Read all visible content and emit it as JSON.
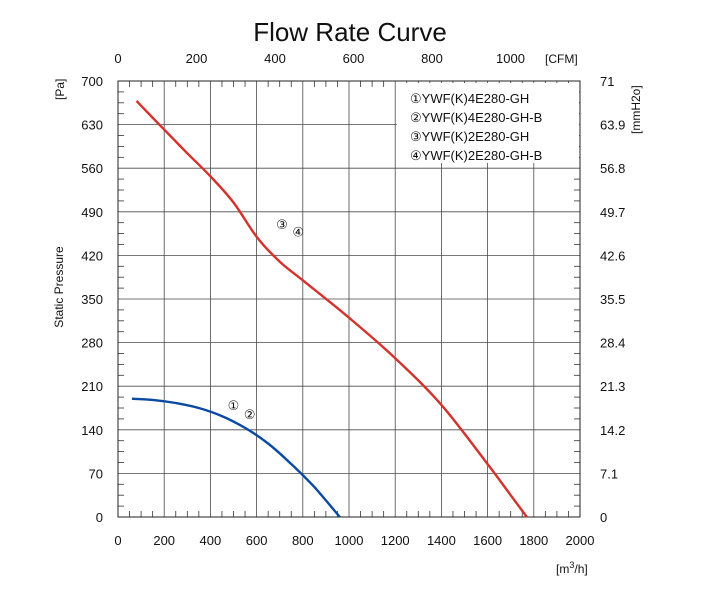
{
  "chart_data": {
    "type": "line",
    "title": "Flow Rate Curve",
    "ylabel": "Static Pressure",
    "x_bottom": {
      "unit": "[m³/h]",
      "unit_base": "[m",
      "unit_exp": "3",
      "unit_rest": "/h]",
      "range": [
        0,
        2000
      ],
      "ticks": [
        "0",
        "200",
        "400",
        "600",
        "800",
        "1000",
        "1200",
        "1400",
        "1600",
        "1800",
        "2000"
      ]
    },
    "x_top": {
      "unit": "[CFM]",
      "range_m3h": [
        0,
        2000
      ],
      "ticks": [
        "0",
        "200",
        "400",
        "600",
        "800",
        "1000"
      ]
    },
    "y_left": {
      "unit": "[Pa]",
      "range": [
        0,
        700
      ],
      "ticks": [
        "0",
        "70",
        "140",
        "210",
        "280",
        "350",
        "420",
        "490",
        "560",
        "630",
        "700"
      ]
    },
    "y_right": {
      "unit": "[mmH2o]",
      "ticks": [
        "0",
        "7.1",
        "14.2",
        "21.3",
        "28.4",
        "35.5",
        "42.6",
        "49.7",
        "56.8",
        "63.9",
        "71"
      ]
    },
    "legend": [
      "①YWF(K)4E280-GH",
      "②YWF(K)4E280-GH-B",
      "③YWF(K)2E280-GH",
      "④YWF(K)2E280-GH-B"
    ],
    "series": [
      {
        "name": "①② YWF(K)4E280-GH / GH-B",
        "color": "#0b4aa2",
        "x": [
          60,
          150,
          250,
          350,
          450,
          550,
          650,
          750,
          850,
          960
        ],
        "y": [
          190,
          188,
          183,
          175,
          162,
          143,
          118,
          85,
          48,
          0
        ]
      },
      {
        "name": "③④ YWF(K)2E280-GH / GH-B",
        "color": "#d4322c",
        "x": [
          80,
          200,
          300,
          400,
          500,
          600,
          700,
          800,
          1000,
          1200,
          1400,
          1600,
          1700,
          1770
        ],
        "y": [
          668,
          622,
          584,
          547,
          505,
          450,
          410,
          380,
          320,
          255,
          180,
          85,
          35,
          0
        ]
      }
    ],
    "annotations": [
      {
        "text": "①",
        "x": 500,
        "y": 172
      },
      {
        "text": "②",
        "x": 570,
        "y": 157
      },
      {
        "text": "③",
        "x": 710,
        "y": 462
      },
      {
        "text": "④",
        "x": 780,
        "y": 450
      }
    ]
  }
}
